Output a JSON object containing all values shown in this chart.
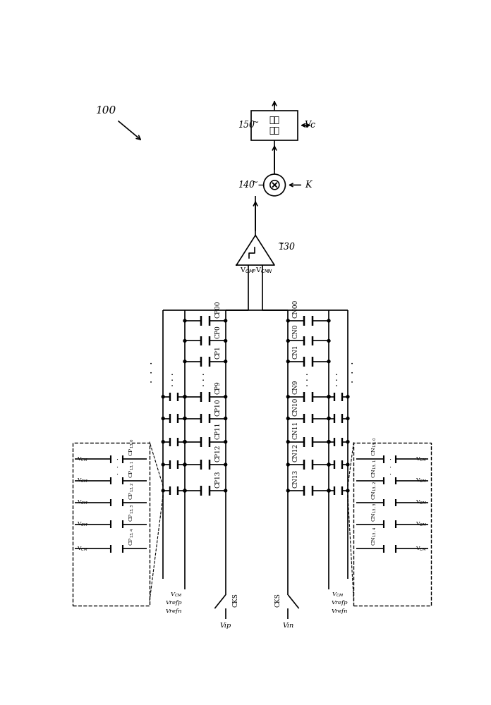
{
  "bg_color": "#ffffff",
  "lc": "#000000",
  "lw": 1.2,
  "fig_w": 6.96,
  "fig_h": 10.0,
  "box_text": "处理\n电路",
  "label_100": "100",
  "label_150": "150",
  "label_140": "140",
  "label_130": "130",
  "label_Vc": "Vc",
  "label_K": "K",
  "label_VCMP": "V$_{CMP}$",
  "label_VCMN": "V$_{CMN}$",
  "cap_left_labels": [
    "CP00",
    "CP0",
    "CP1",
    "CP9",
    "CP10",
    "CP11",
    "CP12",
    "CP13"
  ],
  "cap_right_labels": [
    "CN00",
    "CN0",
    "CN1",
    "CN9",
    "CN10",
    "CN11",
    "CN12",
    "CN13"
  ],
  "sub_left_labels": [
    "CP$_{13,0}$",
    "CP$_{13,1}$",
    "CP$_{13,2}$",
    "CP$_{13,3}$",
    "CP$_{13,4}$"
  ],
  "sub_right_labels": [
    "CN$_{13,0}$",
    "CN$_{13,1}$",
    "CN$_{13,2}$",
    "CN$_{13,3}$",
    "CN$_{13,4}$"
  ]
}
